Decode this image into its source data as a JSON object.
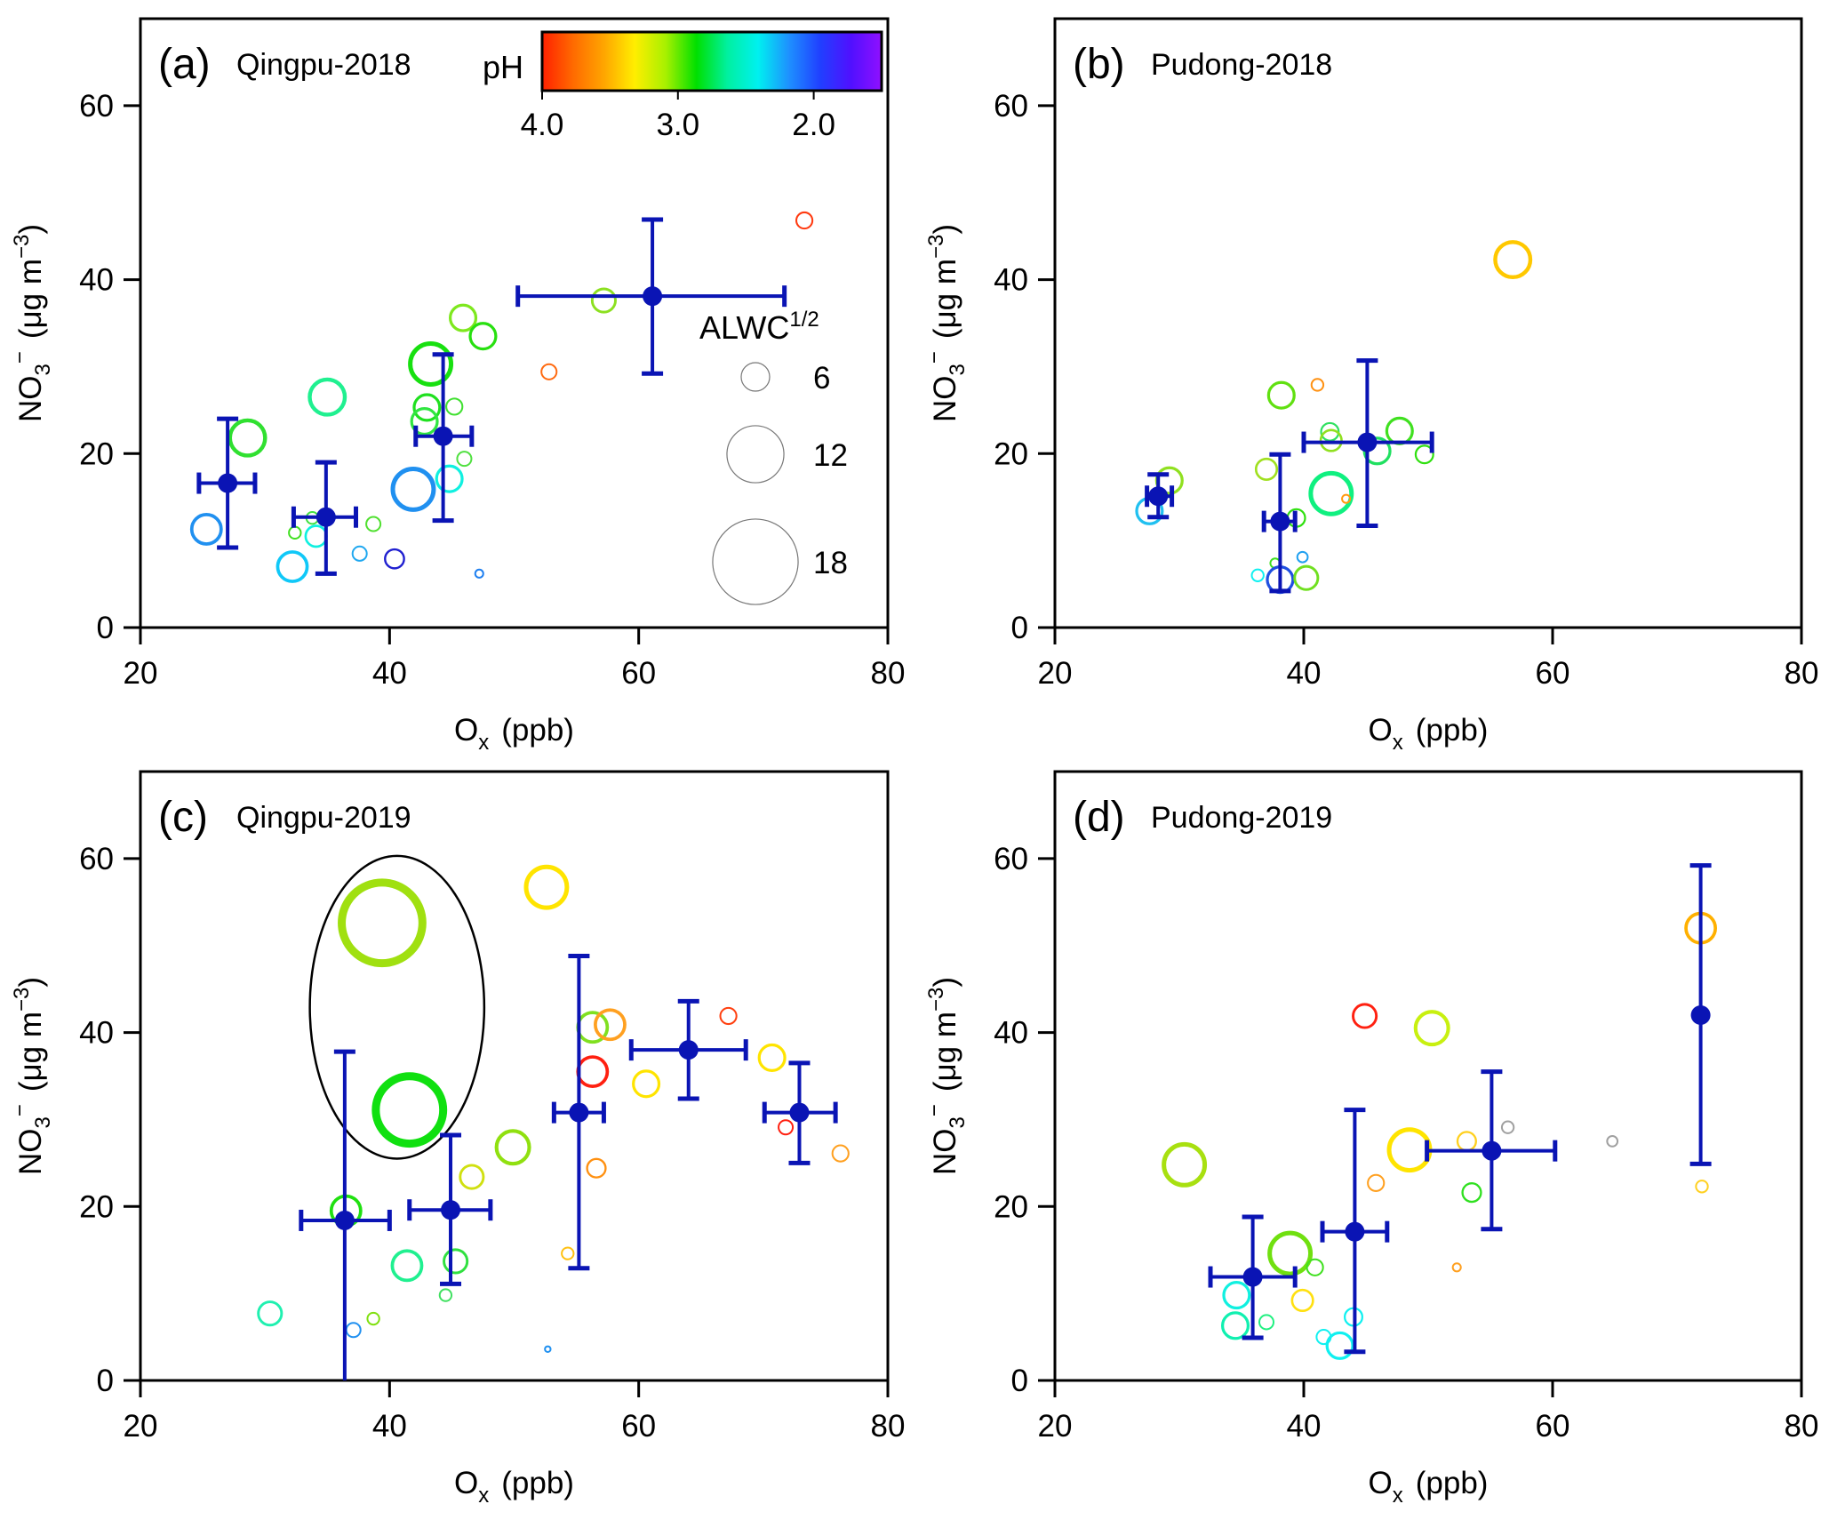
{
  "figure": {
    "colorbar": {
      "label": "pH",
      "ticks": [
        "4.0",
        "3.0",
        "2.0"
      ],
      "tick_values": [
        4.0,
        3.0,
        2.0
      ],
      "range": [
        4.0,
        1.5
      ],
      "stops": [
        "#ff2000",
        "#ff6a00",
        "#ffa500",
        "#ffee00",
        "#a8f000",
        "#00e000",
        "#00f0a0",
        "#00f0f0",
        "#1e90ff",
        "#2040ff",
        "#5010ff",
        "#9010ff"
      ]
    },
    "size_legend": {
      "title": "ALWC",
      "title_sup": "1/2",
      "entries": [
        {
          "label": "6",
          "value": 6
        },
        {
          "label": "12",
          "value": 12
        },
        {
          "label": "18",
          "value": 18
        }
      ]
    },
    "mean_color": "#0a14b4",
    "ellipse_color": "#000000"
  },
  "chart_data": [
    {
      "type": "scatter",
      "panel": "(a)",
      "title": "Qingpu-2018",
      "xlabel": "O",
      "xlabel_sub": "x",
      "xlabel_unit": "(ppb)",
      "ylabel": "NO",
      "ylabel_sub": "3",
      "ylabel_sup": "−",
      "ylabel_unit": "(μg m",
      "ylabel_unit_sup": "−3",
      "ylabel_close": ")",
      "xlim": [
        20,
        80
      ],
      "ylim": [
        0,
        70
      ],
      "xticks": [
        20,
        40,
        60,
        80
      ],
      "xtick_labels": [
        "20",
        "40",
        "60",
        "80"
      ],
      "yticks": [
        0,
        20,
        40,
        60
      ],
      "ytick_labels": [
        "0",
        "20",
        "40",
        "60"
      ],
      "points": [
        {
          "x": 73.3,
          "y": 46.8,
          "size": 3.4,
          "color": "#ff3a10"
        },
        {
          "x": 57.2,
          "y": 37.6,
          "size": 4.9,
          "color": "#8ce020"
        },
        {
          "x": 52.8,
          "y": 29.4,
          "size": 3.2,
          "color": "#ff6a10"
        },
        {
          "x": 45.9,
          "y": 35.6,
          "size": 5.4,
          "color": "#7ee81e"
        },
        {
          "x": 47.5,
          "y": 33.5,
          "size": 5.4,
          "color": "#28e010"
        },
        {
          "x": 43.3,
          "y": 30.3,
          "size": 8.6,
          "color": "#18e010"
        },
        {
          "x": 43.0,
          "y": 25.3,
          "size": 5.4,
          "color": "#20e020"
        },
        {
          "x": 42.8,
          "y": 23.7,
          "size": 5.4,
          "color": "#30e640"
        },
        {
          "x": 45.2,
          "y": 25.4,
          "size": 3.4,
          "color": "#40e030"
        },
        {
          "x": 46.0,
          "y": 19.4,
          "size": 3.0,
          "color": "#50e040"
        },
        {
          "x": 44.8,
          "y": 17.1,
          "size": 5.4,
          "color": "#10f0e0"
        },
        {
          "x": 41.9,
          "y": 15.9,
          "size": 8.6,
          "color": "#2090f0"
        },
        {
          "x": 28.6,
          "y": 21.8,
          "size": 7.4,
          "color": "#30e030"
        },
        {
          "x": 35.0,
          "y": 26.5,
          "size": 7.4,
          "color": "#20f090"
        },
        {
          "x": 25.3,
          "y": 11.3,
          "size": 6.2,
          "color": "#2090f0"
        },
        {
          "x": 32.2,
          "y": 7.0,
          "size": 6.2,
          "color": "#10c8f8"
        },
        {
          "x": 34.1,
          "y": 10.5,
          "size": 4.4,
          "color": "#10f0e0"
        },
        {
          "x": 33.8,
          "y": 12.6,
          "size": 2.5,
          "color": "#40e040"
        },
        {
          "x": 32.4,
          "y": 10.9,
          "size": 2.5,
          "color": "#40e020"
        },
        {
          "x": 38.7,
          "y": 11.9,
          "size": 3.0,
          "color": "#50e030"
        },
        {
          "x": 37.6,
          "y": 8.5,
          "size": 3.0,
          "color": "#20a8f0"
        },
        {
          "x": 40.4,
          "y": 7.9,
          "size": 4.0,
          "color": "#2020d0"
        },
        {
          "x": 47.2,
          "y": 6.2,
          "size": 1.7,
          "color": "#2080f0"
        }
      ],
      "means": [
        {
          "x": 27.0,
          "y": 16.6,
          "xerr": [
            24.7,
            29.2
          ],
          "yerr": [
            9.2,
            24.0
          ]
        },
        {
          "x": 34.9,
          "y": 12.7,
          "xerr": [
            32.3,
            37.3
          ],
          "yerr": [
            6.2,
            19.0
          ]
        },
        {
          "x": 44.3,
          "y": 22.0,
          "xerr": [
            42.1,
            46.6
          ],
          "yerr": [
            12.3,
            31.4
          ]
        },
        {
          "x": 61.1,
          "y": 38.1,
          "xerr": [
            50.3,
            71.7
          ],
          "yerr": [
            29.2,
            46.9
          ]
        }
      ]
    },
    {
      "type": "scatter",
      "panel": "(b)",
      "title": "Pudong-2018",
      "xlabel": "O",
      "xlabel_sub": "x",
      "xlabel_unit": "(ppb)",
      "ylabel": "NO",
      "ylabel_sub": "3",
      "ylabel_sup": "−",
      "ylabel_unit": "(μg m",
      "ylabel_unit_sup": "−3",
      "ylabel_close": ")",
      "xlim": [
        20,
        80
      ],
      "ylim": [
        0,
        70
      ],
      "xticks": [
        20,
        40,
        60,
        80
      ],
      "xtick_labels": [
        "20",
        "40",
        "60",
        "80"
      ],
      "yticks": [
        0,
        20,
        40,
        60
      ],
      "ytick_labels": [
        "0",
        "20",
        "40",
        "60"
      ],
      "points": [
        {
          "x": 56.8,
          "y": 42.3,
          "size": 7.4,
          "color": "#ffc800"
        },
        {
          "x": 38.2,
          "y": 26.7,
          "size": 5.4,
          "color": "#60e010"
        },
        {
          "x": 41.1,
          "y": 27.9,
          "size": 2.5,
          "color": "#ff9010"
        },
        {
          "x": 42.1,
          "y": 22.5,
          "size": 3.7,
          "color": "#30e060"
        },
        {
          "x": 42.2,
          "y": 21.5,
          "size": 4.4,
          "color": "#90e020"
        },
        {
          "x": 47.7,
          "y": 22.6,
          "size": 5.4,
          "color": "#40e020"
        },
        {
          "x": 45.9,
          "y": 20.3,
          "size": 5.4,
          "color": "#20e060"
        },
        {
          "x": 49.7,
          "y": 19.9,
          "size": 3.7,
          "color": "#30e010"
        },
        {
          "x": 37.0,
          "y": 18.2,
          "size": 4.4,
          "color": "#a0e020"
        },
        {
          "x": 29.2,
          "y": 16.9,
          "size": 5.4,
          "color": "#90e020"
        },
        {
          "x": 27.6,
          "y": 13.4,
          "size": 5.4,
          "color": "#20c0f0"
        },
        {
          "x": 42.2,
          "y": 15.4,
          "size": 8.6,
          "color": "#10f080"
        },
        {
          "x": 43.4,
          "y": 14.8,
          "size": 1.7,
          "color": "#ff9a10"
        },
        {
          "x": 39.4,
          "y": 12.6,
          "size": 3.7,
          "color": "#30e010"
        },
        {
          "x": 37.7,
          "y": 7.4,
          "size": 2.0,
          "color": "#40e020"
        },
        {
          "x": 39.9,
          "y": 8.1,
          "size": 2.2,
          "color": "#20a0f0"
        },
        {
          "x": 36.3,
          "y": 6.0,
          "size": 2.5,
          "color": "#10f0f0"
        },
        {
          "x": 38.1,
          "y": 5.5,
          "size": 5.4,
          "color": "#2050e0"
        },
        {
          "x": 40.2,
          "y": 5.7,
          "size": 4.9,
          "color": "#70e020"
        }
      ],
      "means": [
        {
          "x": 28.3,
          "y": 15.1,
          "xerr": [
            27.4,
            29.4
          ],
          "yerr": [
            12.7,
            17.6
          ]
        },
        {
          "x": 38.1,
          "y": 12.2,
          "xerr": [
            36.8,
            39.3
          ],
          "yerr": [
            4.2,
            19.9
          ]
        },
        {
          "x": 45.1,
          "y": 21.3,
          "xerr": [
            40.0,
            50.3
          ],
          "yerr": [
            11.7,
            30.7
          ]
        }
      ]
    },
    {
      "type": "scatter",
      "panel": "(c)",
      "title": "Qingpu-2019",
      "xlabel": "O",
      "xlabel_sub": "x",
      "xlabel_unit": "(ppb)",
      "ylabel": "NO",
      "ylabel_sub": "3",
      "ylabel_sup": "−",
      "ylabel_unit": "(μg m",
      "ylabel_unit_sup": "−3",
      "ylabel_close": ")",
      "xlim": [
        20,
        80
      ],
      "ylim": [
        0,
        70
      ],
      "xticks": [
        20,
        40,
        60,
        80
      ],
      "xtick_labels": [
        "20",
        "40",
        "60",
        "80"
      ],
      "yticks": [
        0,
        20,
        40,
        60
      ],
      "ytick_labels": [
        "0",
        "20",
        "40",
        "60"
      ],
      "ellipse": {
        "cx": 40.6,
        "cy": 42.9,
        "rx": 7.0,
        "ry": 17.4
      },
      "points": [
        {
          "x": 39.4,
          "y": 52.6,
          "size": 17.0,
          "color": "#a0e010",
          "thick": true
        },
        {
          "x": 41.6,
          "y": 31.1,
          "size": 14.2,
          "color": "#10e010",
          "thick": true
        },
        {
          "x": 52.6,
          "y": 56.7,
          "size": 8.6,
          "color": "#ffe400"
        },
        {
          "x": 56.3,
          "y": 40.6,
          "size": 6.2,
          "color": "#80e020"
        },
        {
          "x": 57.7,
          "y": 40.9,
          "size": 6.2,
          "color": "#ffa020"
        },
        {
          "x": 56.3,
          "y": 35.5,
          "size": 6.2,
          "color": "#ff2010"
        },
        {
          "x": 60.6,
          "y": 34.1,
          "size": 5.4,
          "color": "#ffe400"
        },
        {
          "x": 67.2,
          "y": 41.9,
          "size": 3.4,
          "color": "#ff4010"
        },
        {
          "x": 70.7,
          "y": 37.1,
          "size": 5.4,
          "color": "#ffe400"
        },
        {
          "x": 71.8,
          "y": 29.1,
          "size": 3.0,
          "color": "#ff2010"
        },
        {
          "x": 76.2,
          "y": 26.1,
          "size": 3.4,
          "color": "#ffa020"
        },
        {
          "x": 56.6,
          "y": 24.4,
          "size": 3.9,
          "color": "#ff9010"
        },
        {
          "x": 49.9,
          "y": 26.8,
          "size": 6.9,
          "color": "#90e010"
        },
        {
          "x": 46.6,
          "y": 23.4,
          "size": 4.9,
          "color": "#d0e010"
        },
        {
          "x": 36.5,
          "y": 19.5,
          "size": 6.2,
          "color": "#20e010"
        },
        {
          "x": 41.4,
          "y": 13.2,
          "size": 6.2,
          "color": "#20f090"
        },
        {
          "x": 45.3,
          "y": 13.7,
          "size": 4.9,
          "color": "#30e040"
        },
        {
          "x": 44.5,
          "y": 9.8,
          "size": 2.5,
          "color": "#40e060"
        },
        {
          "x": 54.3,
          "y": 14.6,
          "size": 2.5,
          "color": "#ffc010"
        },
        {
          "x": 30.4,
          "y": 7.7,
          "size": 4.9,
          "color": "#20f0b0"
        },
        {
          "x": 37.1,
          "y": 5.8,
          "size": 3.0,
          "color": "#2090f0"
        },
        {
          "x": 38.7,
          "y": 7.1,
          "size": 2.5,
          "color": "#80e010"
        },
        {
          "x": 52.7,
          "y": 3.6,
          "size": 1.2,
          "color": "#2090f0"
        }
      ],
      "means": [
        {
          "x": 36.4,
          "y": 18.4,
          "xerr": [
            32.9,
            40.0
          ],
          "yerr": [
            0.0,
            37.8
          ]
        },
        {
          "x": 44.9,
          "y": 19.6,
          "xerr": [
            41.6,
            48.1
          ],
          "yerr": [
            11.1,
            28.2
          ]
        },
        {
          "x": 55.2,
          "y": 30.8,
          "xerr": [
            53.2,
            57.2
          ],
          "yerr": [
            12.9,
            48.8
          ]
        },
        {
          "x": 64.0,
          "y": 38.0,
          "xerr": [
            59.4,
            68.6
          ],
          "yerr": [
            32.4,
            43.6
          ]
        },
        {
          "x": 72.9,
          "y": 30.8,
          "xerr": [
            70.1,
            75.8
          ],
          "yerr": [
            25.0,
            36.5
          ]
        }
      ]
    },
    {
      "type": "scatter",
      "panel": "(d)",
      "title": "Pudong-2019",
      "xlabel": "O",
      "xlabel_sub": "x",
      "xlabel_unit": "(ppb)",
      "ylabel": "NO",
      "ylabel_sub": "3",
      "ylabel_sup": "−",
      "ylabel_unit": "(μg m",
      "ylabel_unit_sup": "−3",
      "ylabel_close": ")",
      "xlim": [
        20,
        80
      ],
      "ylim": [
        0,
        70
      ],
      "xticks": [
        20,
        40,
        60,
        80
      ],
      "xtick_labels": [
        "20",
        "40",
        "60",
        "80"
      ],
      "yticks": [
        0,
        20,
        40,
        60
      ],
      "ytick_labels": [
        "0",
        "20",
        "40",
        "60"
      ],
      "points": [
        {
          "x": 71.9,
          "y": 52.0,
          "size": 6.2,
          "color": "#ffb000"
        },
        {
          "x": 44.9,
          "y": 41.9,
          "size": 4.9,
          "color": "#ff2010"
        },
        {
          "x": 50.3,
          "y": 40.5,
          "size": 6.9,
          "color": "#c8f010"
        },
        {
          "x": 30.4,
          "y": 24.8,
          "size": 8.6,
          "color": "#a8e010"
        },
        {
          "x": 48.5,
          "y": 26.5,
          "size": 8.6,
          "color": "#ffe400"
        },
        {
          "x": 53.1,
          "y": 27.5,
          "size": 3.9,
          "color": "#ffd020"
        },
        {
          "x": 56.4,
          "y": 29.1,
          "size": 2.5,
          "color": "#a0a0a0"
        },
        {
          "x": 64.8,
          "y": 27.5,
          "size": 2.2,
          "color": "#a0a0a0"
        },
        {
          "x": 45.8,
          "y": 22.7,
          "size": 3.4,
          "color": "#ffa020"
        },
        {
          "x": 53.5,
          "y": 21.6,
          "size": 3.9,
          "color": "#30e020"
        },
        {
          "x": 52.3,
          "y": 13.0,
          "size": 1.7,
          "color": "#ffa020"
        },
        {
          "x": 72.0,
          "y": 22.3,
          "size": 2.5,
          "color": "#ffd020"
        },
        {
          "x": 38.9,
          "y": 14.6,
          "size": 8.6,
          "color": "#70e010"
        },
        {
          "x": 40.9,
          "y": 13.0,
          "size": 3.4,
          "color": "#40e020"
        },
        {
          "x": 34.6,
          "y": 9.8,
          "size": 5.4,
          "color": "#10f0e0"
        },
        {
          "x": 39.9,
          "y": 9.2,
          "size": 4.4,
          "color": "#ffe010"
        },
        {
          "x": 34.5,
          "y": 6.3,
          "size": 5.4,
          "color": "#10f0b0"
        },
        {
          "x": 37.0,
          "y": 6.7,
          "size": 3.0,
          "color": "#20f080"
        },
        {
          "x": 44.0,
          "y": 7.3,
          "size": 3.7,
          "color": "#10f0f0"
        },
        {
          "x": 41.6,
          "y": 5.0,
          "size": 3.0,
          "color": "#10f0f0"
        },
        {
          "x": 42.9,
          "y": 4.0,
          "size": 5.4,
          "color": "#10f0f0"
        }
      ],
      "means": [
        {
          "x": 35.9,
          "y": 11.9,
          "xerr": [
            32.5,
            39.3
          ],
          "yerr": [
            4.9,
            18.8
          ]
        },
        {
          "x": 44.1,
          "y": 17.1,
          "xerr": [
            41.5,
            46.7
          ],
          "yerr": [
            3.3,
            31.1
          ]
        },
        {
          "x": 55.1,
          "y": 26.4,
          "xerr": [
            49.9,
            60.2
          ],
          "yerr": [
            17.4,
            35.5
          ]
        },
        {
          "x": 71.9,
          "y": 42.0,
          "xerr": null,
          "yerr": [
            24.9,
            59.2
          ]
        }
      ]
    }
  ]
}
